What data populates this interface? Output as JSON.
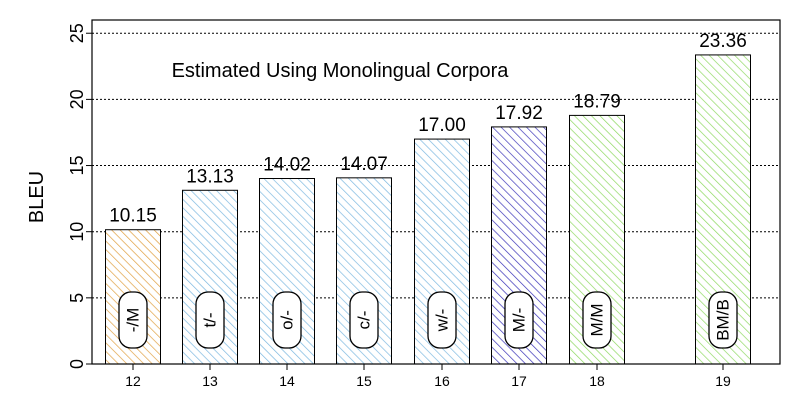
{
  "chart_data": {
    "type": "bar",
    "title": "Estimated Using Monolingual Corpora",
    "xlabel": "",
    "ylabel": "BLEU",
    "ylim": [
      0,
      26
    ],
    "yticks": [
      0,
      5,
      10,
      15,
      20,
      25
    ],
    "grid": "horizontal dashed",
    "bars": [
      {
        "x": 12,
        "value": 10.15,
        "label": "10.15",
        "tag": "-/M",
        "color": "#e0a040"
      },
      {
        "x": 13,
        "value": 13.13,
        "label": "13.13",
        "tag": "t/-",
        "color": "#7cb8e0"
      },
      {
        "x": 14,
        "value": 14.02,
        "label": "14.02",
        "tag": "o/-",
        "color": "#7cb8e0"
      },
      {
        "x": 15,
        "value": 14.07,
        "label": "14.07",
        "tag": "c/-",
        "color": "#7cb8e0"
      },
      {
        "x": 16,
        "value": 17.0,
        "label": "17.00",
        "tag": "w/-",
        "color": "#7cb8e0"
      },
      {
        "x": 17,
        "value": 17.92,
        "label": "17.92",
        "tag": "M/-",
        "color": "#3a34b8"
      },
      {
        "x": 18,
        "value": 18.79,
        "label": "18.79",
        "tag": "M/M",
        "color": "#8ed860"
      },
      {
        "x": 19,
        "value": 23.36,
        "label": "23.36",
        "tag": "BM/B",
        "color": "#8ed860"
      }
    ]
  }
}
